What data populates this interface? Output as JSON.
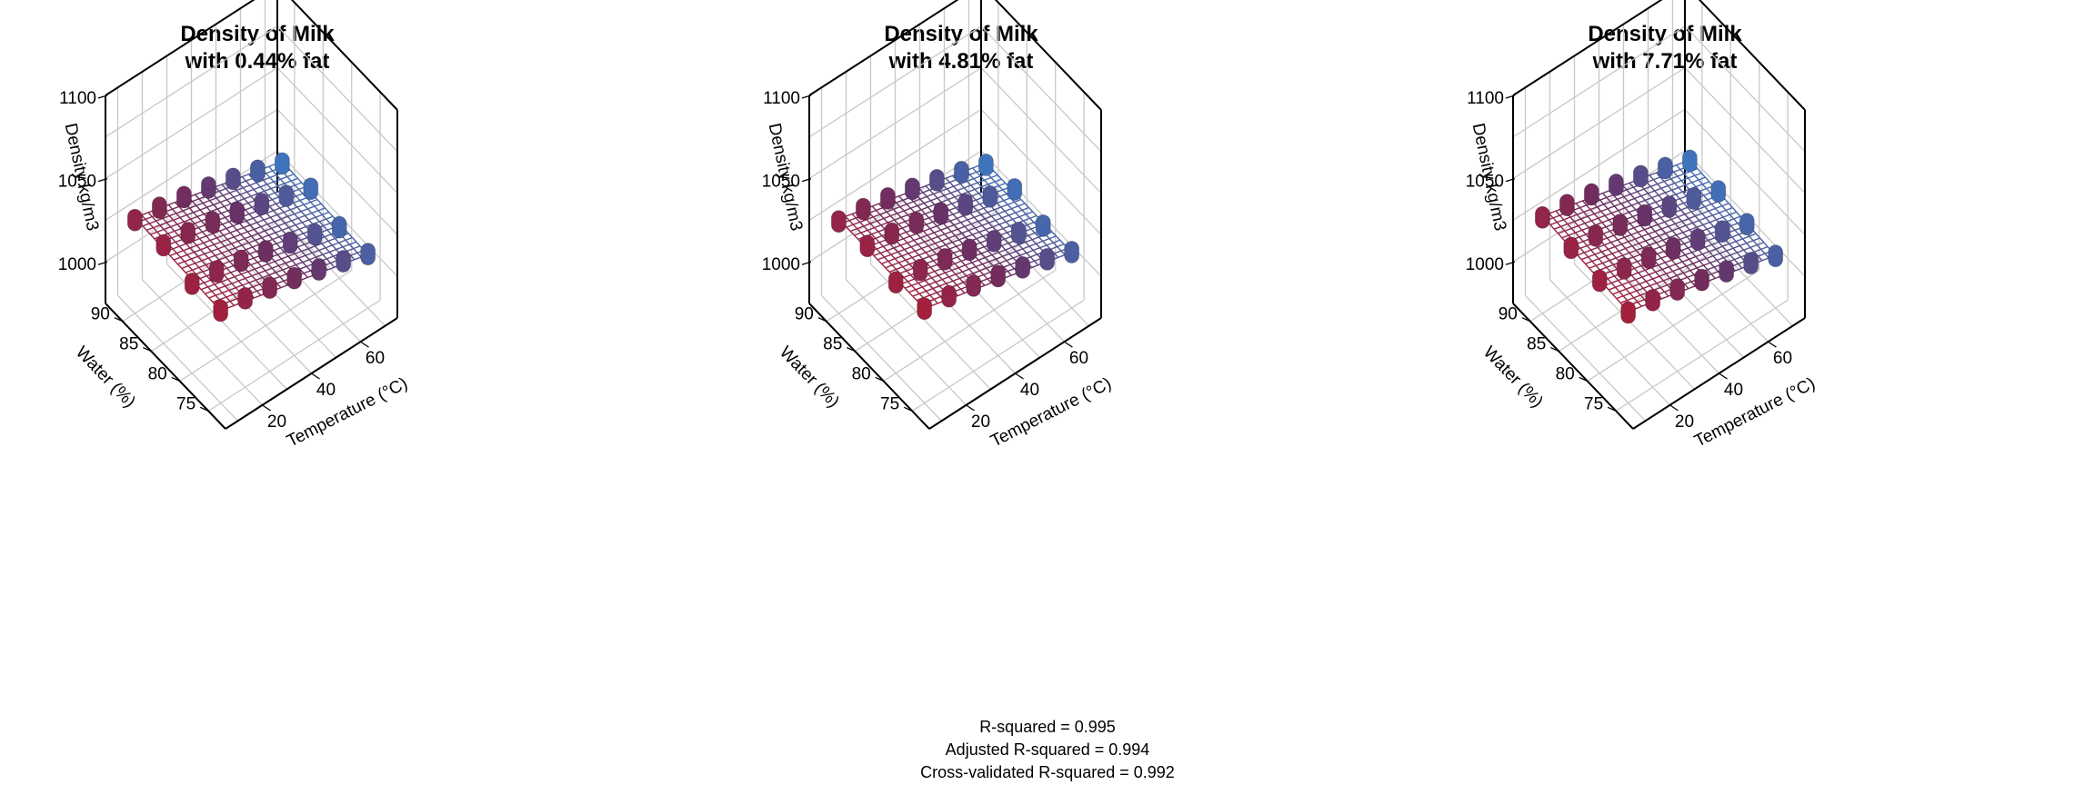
{
  "colors": {
    "low_density": "#a3203d",
    "mid_density": "#6a2f63",
    "high_density": "#3f74bd",
    "gridline": "#c8c8c8",
    "box": "#000000"
  },
  "chart_data": [
    {
      "type": "scatter",
      "subtype": "3d-scatter-with-fitted-surface",
      "title": [
        "Density of Milk",
        "with 0.44% fat"
      ],
      "xlabel": "Temperature (°C)",
      "ylabel": "Water (%)",
      "zlabel": "Density kg/m3",
      "x_ticks": [
        20,
        40,
        60
      ],
      "y_ticks": [
        75,
        80,
        85,
        90
      ],
      "z_ticks": [
        1000,
        1050,
        1100
      ],
      "xlim": [
        5,
        75
      ],
      "ylim": [
        72,
        93
      ],
      "zlim": [
        975,
        1100
      ],
      "grid": true,
      "points": {
        "temperatures": [
          10,
          20,
          30,
          40,
          50,
          60,
          70
        ],
        "water_levels": [
          75,
          80,
          85,
          90
        ],
        "density": [
          [
            1029.4,
            1027.3,
            1024.2,
            1020.4,
            1016.1,
            1011.5,
            1006.3
          ],
          [
            1027.6,
            1025.5,
            1022.4,
            1018.6,
            1014.3,
            1009.7,
            1004.5
          ],
          [
            1032.8,
            1030.7,
            1027.6,
            1023.8,
            1019.5,
            1014.9,
            1009.7
          ],
          [
            1030.0,
            1027.9,
            1024.8,
            1021.0,
            1016.7,
            1012.1,
            1006.9
          ]
        ]
      }
    },
    {
      "type": "scatter",
      "subtype": "3d-scatter-with-fitted-surface",
      "title": [
        "Density of Milk",
        "with 4.81% fat"
      ],
      "xlabel": "Temperature (°C)",
      "ylabel": "Water (%)",
      "zlabel": "Density kg/m3",
      "x_ticks": [
        20,
        40,
        60
      ],
      "y_ticks": [
        75,
        80,
        85,
        90
      ],
      "z_ticks": [
        1000,
        1050,
        1100
      ],
      "xlim": [
        5,
        75
      ],
      "ylim": [
        72,
        93
      ],
      "zlim": [
        975,
        1100
      ],
      "grid": true,
      "points": {
        "temperatures": [
          10,
          20,
          30,
          40,
          50,
          60,
          70
        ],
        "water_levels": [
          75,
          80,
          85,
          90
        ],
        "density": [
          [
            1030.6,
            1028.5,
            1025.4,
            1021.6,
            1017.3,
            1012.7,
            1007.5
          ],
          [
            1028.5,
            1026.4,
            1023.3,
            1019.5,
            1015.2,
            1010.6,
            1005.4
          ],
          [
            1032.4,
            1030.3,
            1027.2,
            1023.4,
            1019.1,
            1014.5,
            1009.3
          ],
          [
            1029.2,
            1027.1,
            1024.0,
            1020.2,
            1015.9,
            1011.3,
            1006.1
          ]
        ]
      }
    },
    {
      "type": "scatter",
      "subtype": "3d-scatter-with-fitted-surface",
      "title": [
        "Density of Milk",
        "with 7.71% fat"
      ],
      "xlabel": "Temperature (°C)",
      "ylabel": "Water (%)",
      "zlabel": "Density kg/m3",
      "x_ticks": [
        20,
        40,
        60
      ],
      "y_ticks": [
        75,
        80,
        85,
        90
      ],
      "z_ticks": [
        1000,
        1050,
        1100
      ],
      "xlim": [
        5,
        75
      ],
      "ylim": [
        72,
        93
      ],
      "zlim": [
        975,
        1100
      ],
      "grid": true,
      "points": {
        "temperatures": [
          10,
          20,
          30,
          40,
          50,
          60,
          70
        ],
        "water_levels": [
          75,
          80,
          85,
          90
        ],
        "density": [
          [
            1028.3,
            1026.2,
            1023.1,
            1019.3,
            1015.0,
            1010.4,
            1005.2
          ],
          [
            1029.4,
            1027.3,
            1024.2,
            1020.4,
            1016.1,
            1011.5,
            1006.3
          ],
          [
            1031.2,
            1029.1,
            1026.0,
            1022.2,
            1017.9,
            1013.3,
            1008.1
          ],
          [
            1031.6,
            1029.5,
            1026.4,
            1022.6,
            1018.3,
            1013.7,
            1008.5
          ]
        ]
      }
    }
  ],
  "fit_stats": {
    "r_squared": "R-squared = 0.995",
    "adjusted_r_squared": "Adjusted R-squared = 0.994",
    "cv_r_squared": "Cross-validated R-squared = 0.992"
  }
}
